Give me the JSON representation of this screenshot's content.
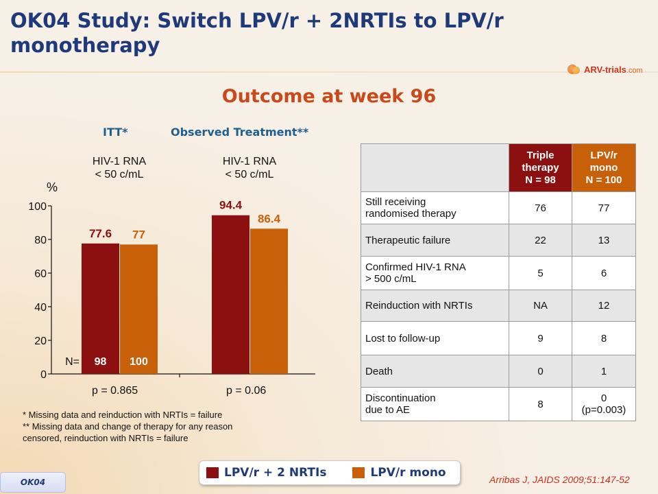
{
  "title": "OK04 Study: Switch LPV/r + 2NRTIs to LPV/r monotherapy",
  "logo": {
    "name": "ARV-trials",
    "suffix": ".com"
  },
  "subtitle": "Outcome at week 96",
  "colors": {
    "triple": "#8c1010",
    "mono": "#c8600a",
    "title": "#1f3a78",
    "accent": "#c8491a"
  },
  "chart_data": {
    "type": "bar",
    "ylabel": "%",
    "ylim": [
      0,
      100
    ],
    "yticks": [
      0,
      20,
      40,
      60,
      80,
      100
    ],
    "groups": [
      {
        "header": "ITT*",
        "sublabel_line1": "HIV-1 RNA",
        "sublabel_line2": "< 50 c/mL",
        "p_value": "p = 0.865"
      },
      {
        "header": "Observed Treatment**",
        "sublabel_line1": "HIV-1 RNA",
        "sublabel_line2": "< 50 c/mL",
        "p_value": "p = 0.06"
      }
    ],
    "series": [
      {
        "name": "LPV/r + 2 NRTIs",
        "color": "#8c1010",
        "values": [
          77.6,
          94.4
        ],
        "labels": [
          "77.6",
          "94.4"
        ],
        "n": "98"
      },
      {
        "name": "LPV/r mono",
        "color": "#c8600a",
        "values": [
          77,
          86.4
        ],
        "labels": [
          "77",
          "86.4"
        ],
        "n": "100"
      }
    ],
    "n_prefix": "N="
  },
  "footnotes": [
    "* Missing data and reinduction with NRTIs = failure",
    "** Missing data and change of therapy for any reason",
    "censored, reinduction with NRTIs = failure"
  ],
  "table": {
    "headers": [
      {
        "line1": "Triple",
        "line2": "therapy",
        "line3": "N = 98"
      },
      {
        "line1": "LPV/r",
        "line2": "mono",
        "line3": "N = 100"
      }
    ],
    "rows": [
      {
        "label1": "Still receiving",
        "label2": "randomised therapy",
        "triple": "76",
        "mono": "77",
        "mono2": ""
      },
      {
        "label1": "Therapeutic failure",
        "label2": "",
        "triple": "22",
        "mono": "13",
        "mono2": ""
      },
      {
        "label1": "Confirmed HIV-1 RNA",
        "label2": "> 500 c/mL",
        "triple": "5",
        "mono": "6",
        "mono2": ""
      },
      {
        "label1": "Reinduction with NRTIs",
        "label2": "",
        "triple": "NA",
        "mono": "12",
        "mono2": ""
      },
      {
        "label1": "Lost to follow-up",
        "label2": "",
        "triple": "9",
        "mono": "8",
        "mono2": ""
      },
      {
        "label1": "Death",
        "label2": "",
        "triple": "0",
        "mono": "1",
        "mono2": ""
      },
      {
        "label1": "Discontinuation",
        "label2": "due to AE",
        "triple": "8",
        "mono": "0",
        "mono2": "(p=0.003)"
      }
    ]
  },
  "legend": [
    {
      "label": "LPV/r + 2 NRTIs",
      "color": "#8c1010"
    },
    {
      "label": "LPV/r mono",
      "color": "#c8600a"
    }
  ],
  "reference": "Arribas J, JAIDS 2009;51:147-52",
  "tag": "OK04"
}
